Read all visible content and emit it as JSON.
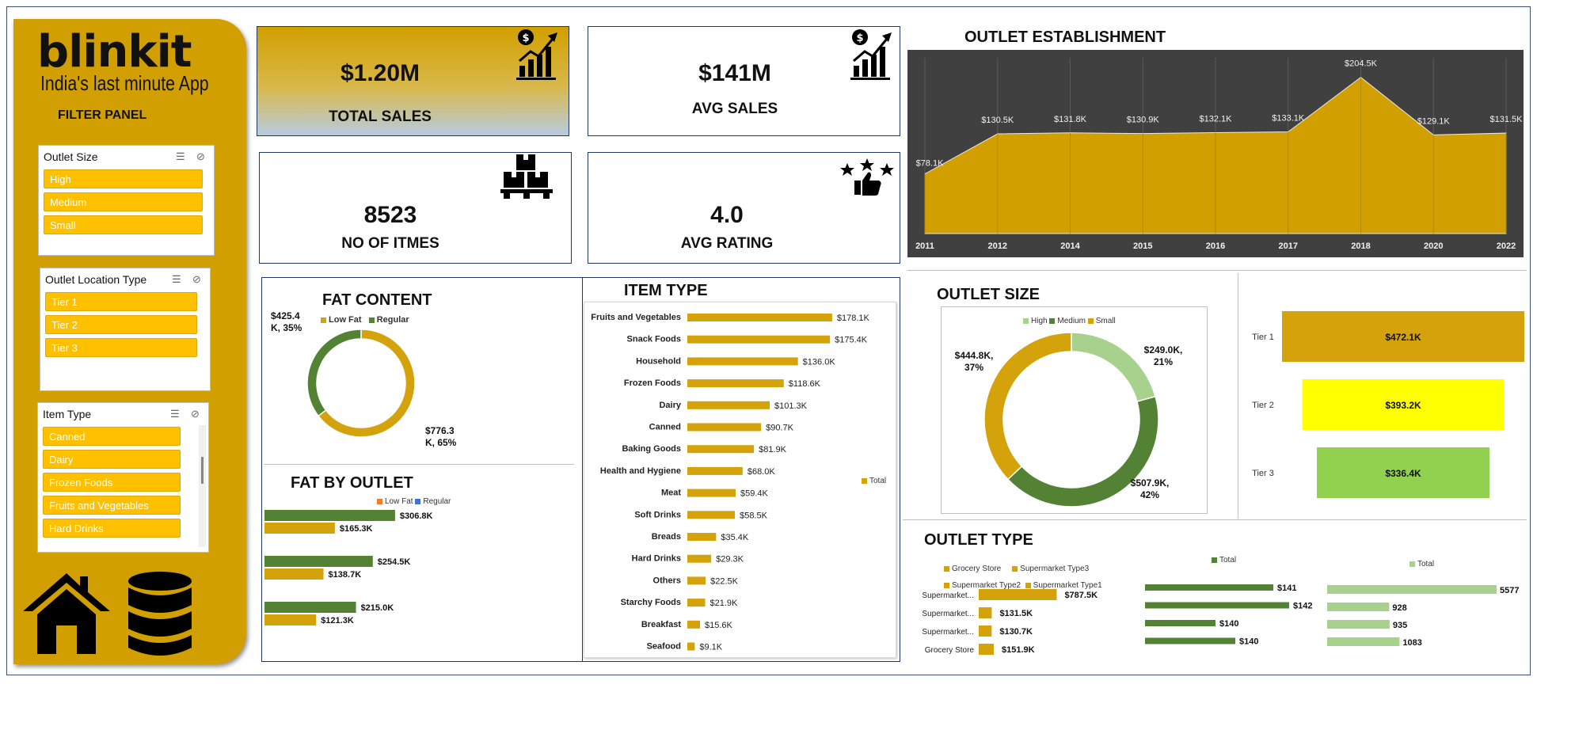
{
  "brand": {
    "name": "blinkit",
    "tagline": "India's last minute App"
  },
  "filter_panel": {
    "title": "FILTER PANEL",
    "slicers": [
      {
        "title": "Outlet Size",
        "items": [
          "High",
          "Medium",
          "Small"
        ]
      },
      {
        "title": "Outlet Location Type",
        "items": [
          "Tier 1",
          "Tier 2",
          "Tier 3"
        ]
      },
      {
        "title": "Item Type",
        "items": [
          "Canned",
          "Dairy",
          "Frozen Foods",
          "Fruits and Vegetables",
          "Hard Drinks"
        ]
      }
    ],
    "icons": [
      "home-icon",
      "database-icon"
    ]
  },
  "kpis": {
    "total_sales": {
      "value": "$1.20M",
      "label": "TOTAL SALES",
      "icon": "dollar-growth-chart-icon"
    },
    "avg_sales": {
      "value": "$141M",
      "label": "AVG SALES",
      "icon": "dollar-growth-chart-icon"
    },
    "items": {
      "value": "8523",
      "label": "NO OF ITMES",
      "icon": "boxes-pallet-icon"
    },
    "rating": {
      "value": "4.0",
      "label": "AVG RATING",
      "icon": "stars-thumbs-up-icon"
    }
  },
  "colors": {
    "gold": "#d19f00",
    "bar_gold": "#d4a20a",
    "green": "#548235",
    "light_green": "#a9d18e",
    "yellow": "#ffff00",
    "lime": "#92d050",
    "dark": "#404040",
    "slicer_yellow": "#ffc000"
  },
  "chart_data": [
    {
      "id": "outlet_establishment",
      "type": "area",
      "title": "OUTLET ESTABLISHMENT",
      "categories": [
        "2011",
        "2012",
        "2014",
        "2015",
        "2016",
        "2017",
        "2018",
        "2020",
        "2022"
      ],
      "values": [
        78.1,
        130.5,
        131.8,
        130.9,
        132.1,
        133.1,
        204.5,
        129.1,
        131.5
      ],
      "labels": [
        "$78.1K",
        "$130.5K",
        "$131.8K",
        "$130.9K",
        "$132.1K",
        "$133.1K",
        "$204.5K",
        "$129.1K",
        "$131.5K"
      ],
      "ylim": [
        0,
        230
      ]
    },
    {
      "id": "fat_content",
      "type": "pie",
      "title": "FAT CONTENT",
      "series": [
        {
          "name": "Low Fat",
          "value": 776.3,
          "label": "$776.3 K, 65%",
          "color": "#d4a20a"
        },
        {
          "name": "Regular",
          "value": 425.4,
          "label": "$425.4 K, 35%",
          "color": "#548235"
        }
      ]
    },
    {
      "id": "fat_by_outlet",
      "type": "bar",
      "title": "FAT BY OUTLET",
      "legend": [
        "Low Fat",
        "Regular"
      ],
      "groups": [
        {
          "bars": [
            {
              "value": 306.8,
              "label": "$306.8K",
              "color": "#548235"
            },
            {
              "value": 165.3,
              "label": "$165.3K",
              "color": "#d4a20a"
            }
          ]
        },
        {
          "bars": [
            {
              "value": 254.5,
              "label": "$254.5K",
              "color": "#548235"
            },
            {
              "value": 138.7,
              "label": "$138.7K",
              "color": "#d4a20a"
            }
          ]
        },
        {
          "bars": [
            {
              "value": 215.0,
              "label": "$215.0K",
              "color": "#548235"
            },
            {
              "value": 121.3,
              "label": "$121.3K",
              "color": "#d4a20a"
            }
          ]
        }
      ],
      "xlim": [
        0,
        320
      ]
    },
    {
      "id": "item_type",
      "type": "bar",
      "title": "ITEM TYPE",
      "legend": [
        "Total"
      ],
      "categories": [
        "Fruits and Vegetables",
        "Snack Foods",
        "Household",
        "Frozen Foods",
        "Dairy",
        "Canned",
        "Baking Goods",
        "Health and Hygiene",
        "Meat",
        "Soft Drinks",
        "Breads",
        "Hard Drinks",
        "Others",
        "Starchy Foods",
        "Breakfast",
        "Seafood"
      ],
      "values": [
        178.1,
        175.4,
        136.0,
        118.6,
        101.3,
        90.7,
        81.9,
        68.0,
        59.4,
        58.5,
        35.4,
        29.3,
        22.5,
        21.9,
        15.6,
        9.1
      ],
      "labels": [
        "$178.1K",
        "$175.4K",
        "$136.0K",
        "$118.6K",
        "$101.3K",
        "$90.7K",
        "$81.9K",
        "$68.0K",
        "$59.4K",
        "$58.5K",
        "$35.4K",
        "$29.3K",
        "$22.5K",
        "$21.9K",
        "$15.6K",
        "$9.1K"
      ],
      "xlim": [
        0,
        185
      ]
    },
    {
      "id": "outlet_size",
      "type": "pie",
      "title": "OUTLET SIZE",
      "legend": [
        "High",
        "Medium",
        "Small"
      ],
      "series": [
        {
          "name": "High",
          "value": 249.0,
          "label": "$249.0K, 21%",
          "color": "#a9d18e"
        },
        {
          "name": "Medium",
          "value": 507.9,
          "label": "$507.9K, 42%",
          "color": "#548235"
        },
        {
          "name": "Small",
          "value": 444.8,
          "label": "$444.8K, 37%",
          "color": "#d4a20a"
        }
      ]
    },
    {
      "id": "location_type",
      "type": "bar",
      "categories": [
        "Tier 1",
        "Tier 2",
        "Tier 3"
      ],
      "values": [
        472.1,
        393.2,
        336.4
      ],
      "labels": [
        "$472.1K",
        "$393.2K",
        "$336.4K"
      ],
      "colors": [
        "#d4a20a",
        "#ffff00",
        "#92d050"
      ]
    },
    {
      "id": "outlet_type_sales",
      "type": "bar",
      "title": "OUTLET TYPE",
      "legend": [
        "Grocery Store",
        "Supermarket Type3",
        "Supermarket Type2",
        "Supermarket Type1"
      ],
      "categories": [
        "Supermarket...",
        "Supermarket...",
        "Supermarket...",
        "Grocery Store"
      ],
      "values": [
        787.5,
        131.5,
        130.7,
        151.9
      ],
      "labels": [
        "$787.5K",
        "$131.5K",
        "$130.7K",
        "$151.9K"
      ],
      "xlim": [
        0,
        800
      ]
    },
    {
      "id": "outlet_type_avg",
      "type": "bar",
      "legend": [
        "Total"
      ],
      "values": [
        141,
        142,
        140,
        140
      ],
      "labels": [
        "$141",
        "$142",
        "$140",
        "$140"
      ],
      "xlim": [
        0,
        142
      ]
    },
    {
      "id": "outlet_type_count",
      "type": "bar",
      "legend": [
        "Total"
      ],
      "values": [
        5577,
        928,
        935,
        1083
      ],
      "labels": [
        "5577",
        "928",
        "935",
        "1083"
      ],
      "xlim": [
        0,
        5577
      ]
    }
  ]
}
